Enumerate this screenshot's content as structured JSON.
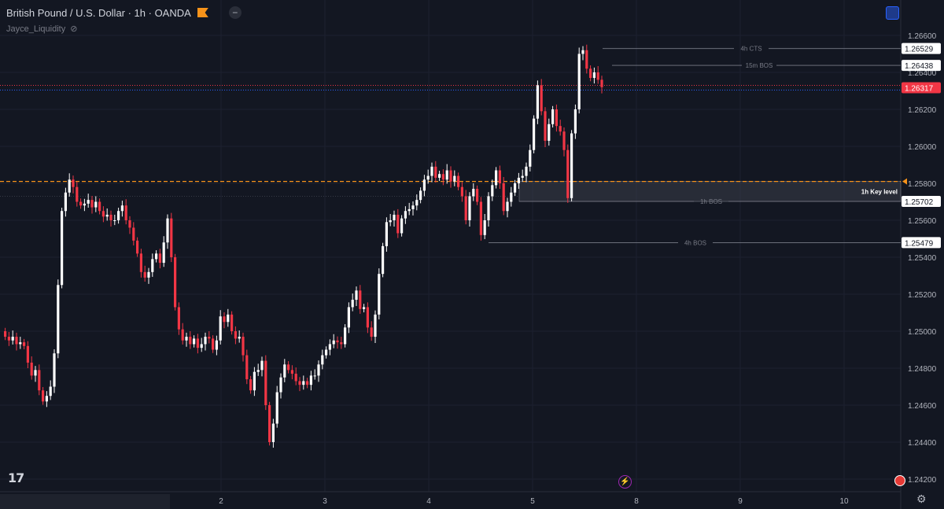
{
  "header": {
    "title": "British Pound / U.S. Dollar · 1h · OANDA",
    "indicator": "Jayce_Liquidity"
  },
  "icons": {
    "flag": "flag-icon",
    "minus": "collapse-icon",
    "eye": "eye-hidden-icon",
    "logo": "tradingview-logo-icon",
    "sync": "sync-icon",
    "settings": "gear-icon",
    "alert": "lightning-icon",
    "avatar": "avatar-icon"
  },
  "colors": {
    "bg": "#131722",
    "up": "#ffffff",
    "down": "#f23645",
    "grid": "#2a2e39",
    "text": "#b2b5be",
    "level": "#f7931a"
  },
  "chart_data": {
    "type": "candlestick",
    "symbol": "British Pound / U.S. Dollar",
    "timeframe": "1h",
    "ylim": [
      1.2415,
      1.2675
    ],
    "y_ticks": [
      "1.26600",
      "1.26400",
      "1.26200",
      "1.26000",
      "1.25800",
      "1.25600",
      "1.25400",
      "1.25200",
      "1.25000",
      "1.24800",
      "1.24600",
      "1.24400",
      "1.24200"
    ],
    "x_ticks": [
      "2",
      "3",
      "4",
      "5",
      "8",
      "9",
      "10"
    ],
    "price_labels": [
      {
        "text": "1.26529",
        "value": 1.26529,
        "kind": "level"
      },
      {
        "text": "1.26438",
        "value": 1.26438,
        "kind": "level"
      },
      {
        "text": "1.26317",
        "value": 1.26317,
        "kind": "current"
      },
      {
        "text": "1.25702",
        "value": 1.25702,
        "kind": "level"
      },
      {
        "text": "1.25479",
        "value": 1.25479,
        "kind": "level"
      }
    ],
    "annotations": [
      {
        "label": "4h CTS",
        "value": 1.26529
      },
      {
        "label": "15m BOS",
        "value": 1.26438
      },
      {
        "label": "1h BOS",
        "value": 1.25702
      },
      {
        "label": "4h BOS",
        "value": 1.25479
      },
      {
        "label": "1h Key level",
        "value": 1.2581
      }
    ],
    "key_zone": [
      1.25702,
      1.2581
    ],
    "current_price": 1.26317,
    "close_series": [
      1.2497,
      1.2495,
      1.2497,
      1.2493,
      1.2494,
      1.2492,
      1.2483,
      1.2476,
      1.2479,
      1.2468,
      1.2462,
      1.2465,
      1.247,
      1.2488,
      1.2525,
      1.2565,
      1.2575,
      1.2582,
      1.2578,
      1.257,
      1.2568,
      1.2569,
      1.2571,
      1.2567,
      1.257,
      1.2565,
      1.2562,
      1.2563,
      1.256,
      1.256,
      1.2565,
      1.2568,
      1.256,
      1.2556,
      1.2549,
      1.2542,
      1.2532,
      1.2529,
      1.2532,
      1.2539,
      1.2542,
      1.2537,
      1.2548,
      1.2561,
      1.254,
      1.2513,
      1.2501,
      1.2495,
      1.2497,
      1.2493,
      1.2496,
      1.2491,
      1.2493,
      1.2497,
      1.2496,
      1.249,
      1.2495,
      1.2508,
      1.2505,
      1.2509,
      1.25,
      1.2496,
      1.2497,
      1.2487,
      1.2474,
      1.2468,
      1.2478,
      1.2479,
      1.2484,
      1.246,
      1.244,
      1.245,
      1.2467,
      1.2475,
      1.2482,
      1.2479,
      1.2477,
      1.2473,
      1.2471,
      1.2473,
      1.2471,
      1.2476,
      1.2476,
      1.2482,
      1.2487,
      1.249,
      1.2493,
      1.2495,
      1.2494,
      1.2493,
      1.2502,
      1.2513,
      1.2517,
      1.2522,
      1.2512,
      1.2513,
      1.2502,
      1.2497,
      1.2509,
      1.2531,
      1.2546,
      1.2559,
      1.256,
      1.2563,
      1.2553,
      1.2561,
      1.2565,
      1.2566,
      1.2568,
      1.2571,
      1.2576,
      1.2582,
      1.2584,
      1.2589,
      1.2583,
      1.2585,
      1.2582,
      1.2587,
      1.2581,
      1.2584,
      1.2578,
      1.2573,
      1.256,
      1.2573,
      1.2577,
      1.257,
      1.2552,
      1.256,
      1.2573,
      1.2579,
      1.2587,
      1.258,
      1.2565,
      1.257,
      1.2575,
      1.258,
      1.2583,
      1.2584,
      1.2589,
      1.2598,
      1.2615,
      1.2633,
      1.2619,
      1.2603,
      1.2612,
      1.262,
      1.2611,
      1.2608,
      1.2598,
      1.2572,
      1.2607,
      1.262,
      1.265,
      1.2652,
      1.2642,
      1.2637,
      1.264,
      1.2636,
      1.2632
    ]
  }
}
